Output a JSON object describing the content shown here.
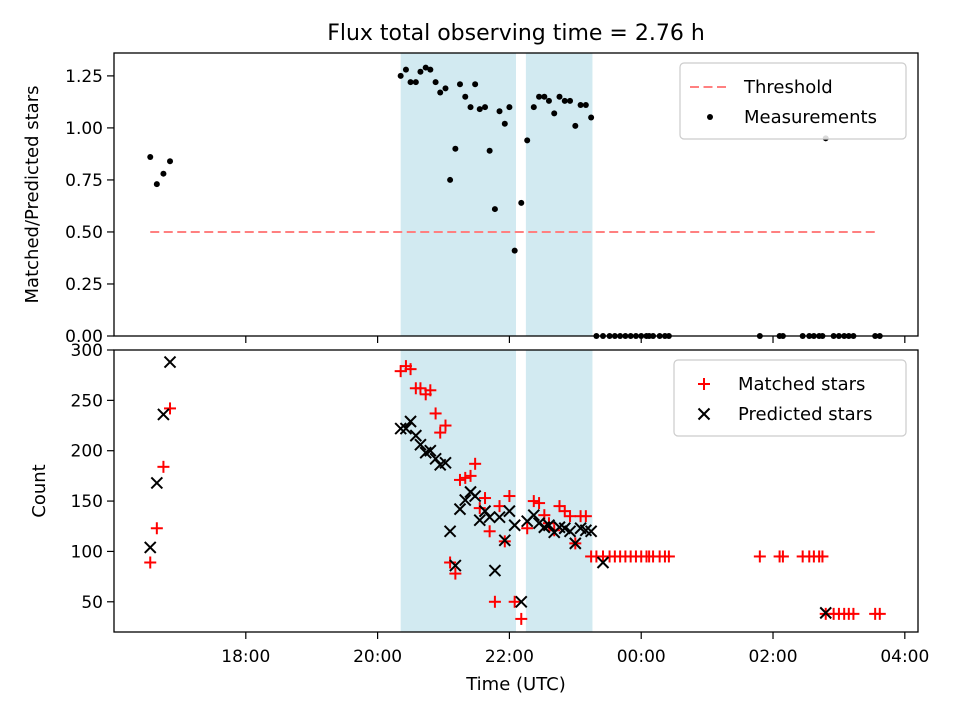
{
  "figure": {
    "title": "Flux total observing time = 2.76 h"
  },
  "chart_data": [
    {
      "type": "scatter",
      "title": "Flux total observing time = 2.76 h",
      "xlabel": "",
      "ylabel": "Matched/Predicted stars",
      "x_unit": "hours (UTC, continuing past midnight)",
      "xlim": [
        16.0,
        28.2
      ],
      "ylim": [
        0.0,
        1.36
      ],
      "yticks": [
        0.0,
        0.25,
        0.5,
        0.75,
        1.0,
        1.25
      ],
      "ytick_labels": [
        "0.00",
        "0.25",
        "0.50",
        "0.75",
        "1.00",
        "1.25"
      ],
      "xticks": [
        18,
        20,
        22,
        24,
        26,
        28
      ],
      "grid": false,
      "legend_position": "upper right",
      "shaded_regions": [
        [
          20.35,
          22.1
        ],
        [
          22.25,
          23.26
        ]
      ],
      "shade_color": "#add8e6",
      "threshold": {
        "name": "Threshold",
        "value": 0.5,
        "x": [
          16.55,
          27.6
        ],
        "color": "#ff8080"
      },
      "series": [
        {
          "name": "Measurements",
          "marker": "dot",
          "color": "#000000",
          "x": [
            16.55,
            16.65,
            16.75,
            16.85,
            20.35,
            20.43,
            20.5,
            20.58,
            20.65,
            20.73,
            20.8,
            20.88,
            20.95,
            21.03,
            21.1,
            21.18,
            21.25,
            21.33,
            21.41,
            21.48,
            21.55,
            21.63,
            21.7,
            21.78,
            21.85,
            21.93,
            22.0,
            22.08,
            22.18,
            22.27,
            22.37,
            22.45,
            22.53,
            22.6,
            22.68,
            22.76,
            22.84,
            22.92,
            23.0,
            23.08,
            23.16,
            23.24,
            23.32,
            23.42,
            23.52,
            23.6,
            23.68,
            23.76,
            23.84,
            23.92,
            24.0,
            24.08,
            24.12,
            24.18,
            24.28,
            24.36,
            24.42,
            25.8,
            26.1,
            26.15,
            26.45,
            26.55,
            26.62,
            26.7,
            26.75,
            26.8,
            26.92,
            27.0,
            27.08,
            27.15,
            27.22,
            27.55,
            27.62
          ],
          "y": [
            0.86,
            0.73,
            0.78,
            0.84,
            1.25,
            1.28,
            1.22,
            1.22,
            1.27,
            1.29,
            1.28,
            1.22,
            1.17,
            1.19,
            0.75,
            0.9,
            1.21,
            1.15,
            1.1,
            1.21,
            1.09,
            1.1,
            0.89,
            0.61,
            1.08,
            1.02,
            1.1,
            0.41,
            0.64,
            0.94,
            1.1,
            1.15,
            1.15,
            1.13,
            1.07,
            1.15,
            1.13,
            1.13,
            1.01,
            1.11,
            1.11,
            1.05,
            0.0,
            0.0,
            0.0,
            0.0,
            0.0,
            0.0,
            0.0,
            0.0,
            0.0,
            0.0,
            0.0,
            0.0,
            0.0,
            0.0,
            0.0,
            0.0,
            0.0,
            0.0,
            0.0,
            0.0,
            0.0,
            0.0,
            0.0,
            0.95,
            0.0,
            0.0,
            0.0,
            0.0,
            0.0,
            0.0,
            0.0
          ]
        }
      ]
    },
    {
      "type": "scatter",
      "title": "",
      "xlabel": "Time (UTC)",
      "ylabel": "Count",
      "x_unit": "hours (UTC, continuing past midnight)",
      "xlim": [
        16.0,
        28.2
      ],
      "ylim": [
        20,
        300
      ],
      "yticks": [
        50,
        100,
        150,
        200,
        250,
        300
      ],
      "ytick_labels": [
        "50",
        "100",
        "150",
        "200",
        "250",
        "300"
      ],
      "xticks": [
        18,
        20,
        22,
        24,
        26,
        28
      ],
      "xtick_labels": [
        "18:00",
        "20:00",
        "22:00",
        "00:00",
        "02:00",
        "04:00"
      ],
      "grid": false,
      "legend_position": "upper right",
      "shaded_regions": [
        [
          20.35,
          22.1
        ],
        [
          22.25,
          23.26
        ]
      ],
      "shade_color": "#add8e6",
      "series": [
        {
          "name": "Matched stars",
          "marker": "plus",
          "color": "#ff0000",
          "x": [
            16.55,
            16.65,
            16.75,
            16.85,
            20.35,
            20.43,
            20.5,
            20.58,
            20.65,
            20.73,
            20.8,
            20.88,
            20.95,
            21.03,
            21.1,
            21.18,
            21.25,
            21.33,
            21.41,
            21.48,
            21.55,
            21.63,
            21.7,
            21.78,
            21.85,
            21.93,
            22.0,
            22.08,
            22.18,
            22.27,
            22.37,
            22.45,
            22.53,
            22.6,
            22.68,
            22.76,
            22.84,
            22.92,
            23.0,
            23.08,
            23.16,
            23.24,
            23.32,
            23.42,
            23.52,
            23.6,
            23.68,
            23.76,
            23.84,
            23.92,
            24.0,
            24.08,
            24.12,
            24.18,
            24.28,
            24.36,
            24.42,
            25.8,
            26.1,
            26.15,
            26.45,
            26.55,
            26.62,
            26.7,
            26.75,
            26.8,
            26.92,
            27.0,
            27.08,
            27.15,
            27.22,
            27.55,
            27.62
          ],
          "y": [
            89,
            123,
            184,
            242,
            279,
            284,
            281,
            262,
            262,
            256,
            260,
            237,
            218,
            225,
            89,
            78,
            171,
            173,
            175,
            187,
            143,
            153,
            120,
            50,
            145,
            110,
            155,
            50,
            33,
            123,
            150,
            148,
            136,
            128,
            121,
            145,
            140,
            135,
            108,
            135,
            135,
            95,
            95,
            95,
            95,
            95,
            95,
            95,
            95,
            95,
            95,
            95,
            95,
            95,
            95,
            95,
            95,
            95,
            95,
            95,
            95,
            95,
            95,
            95,
            95,
            38,
            38,
            38,
            38,
            38,
            38,
            38,
            38
          ]
        },
        {
          "name": "Predicted stars",
          "marker": "cross",
          "color": "#000000",
          "x": [
            16.55,
            16.65,
            16.75,
            16.85,
            20.35,
            20.43,
            20.5,
            20.58,
            20.65,
            20.73,
            20.8,
            20.88,
            20.95,
            21.03,
            21.1,
            21.18,
            21.25,
            21.33,
            21.41,
            21.48,
            21.55,
            21.63,
            21.7,
            21.78,
            21.85,
            21.93,
            22.0,
            22.08,
            22.18,
            22.27,
            22.37,
            22.45,
            22.53,
            22.6,
            22.68,
            22.76,
            22.84,
            22.92,
            23.0,
            23.08,
            23.16,
            23.24,
            23.42,
            26.8
          ],
          "y": [
            104,
            168,
            236,
            288,
            222,
            222,
            229,
            215,
            206,
            198,
            200,
            192,
            186,
            188,
            120,
            86,
            142,
            151,
            159,
            155,
            131,
            140,
            134,
            81,
            134,
            111,
            140,
            126,
            50,
            130,
            136,
            128,
            124,
            126,
            119,
            124,
            123,
            120,
            108,
            123,
            121,
            120,
            89,
            39
          ]
        }
      ]
    }
  ]
}
